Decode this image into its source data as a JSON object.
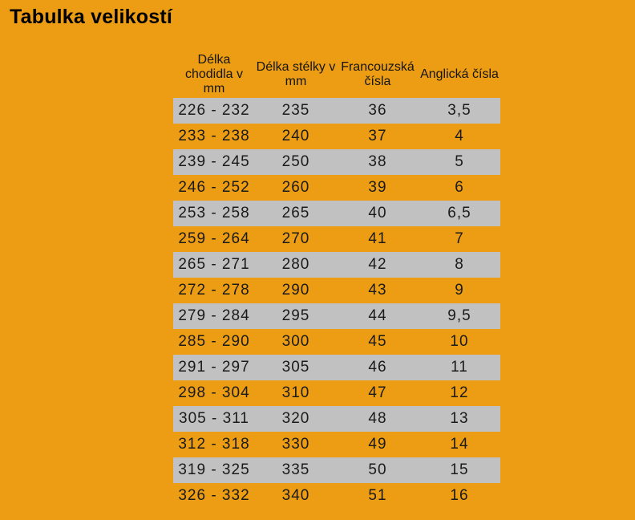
{
  "page": {
    "title": "Tabulka velikostí",
    "colors": {
      "background": "#EC9D13",
      "row_highlight": "#C1C1C1",
      "cell_text": "#1A1A1A",
      "title_text": "#000000"
    }
  },
  "chart_data": {
    "type": "table",
    "title": "Tabulka velikostí",
    "columns": [
      "Délka chodidla v mm",
      "Délka stélky v mm",
      "Francouzská čísla",
      "Anglická čísla"
    ],
    "rows": [
      [
        "226 - 232",
        "235",
        "36",
        "3,5"
      ],
      [
        "233 - 238",
        "240",
        "37",
        "4"
      ],
      [
        "239 - 245",
        "250",
        "38",
        "5"
      ],
      [
        "246 - 252",
        "260",
        "39",
        "6"
      ],
      [
        "253 - 258",
        "265",
        "40",
        "6,5"
      ],
      [
        "259 - 264",
        "270",
        "41",
        "7"
      ],
      [
        "265 - 271",
        "280",
        "42",
        "8"
      ],
      [
        "272 - 278",
        "290",
        "43",
        "9"
      ],
      [
        "279 - 284",
        "295",
        "44",
        "9,5"
      ],
      [
        "285 - 290",
        "300",
        "45",
        "10"
      ],
      [
        "291 - 297",
        "305",
        "46",
        "11"
      ],
      [
        "298 - 304",
        "310",
        "47",
        "12"
      ],
      [
        "305 - 311",
        "320",
        "48",
        "13"
      ],
      [
        "312 - 318",
        "330",
        "49",
        "14"
      ],
      [
        "319 - 325",
        "335",
        "50",
        "15"
      ],
      [
        "326 - 332",
        "340",
        "51",
        "16"
      ]
    ],
    "layout_hints": {
      "striping": "odd data rows gray, even rows transparent over orange background",
      "first_data_row_highlighted": true
    }
  }
}
